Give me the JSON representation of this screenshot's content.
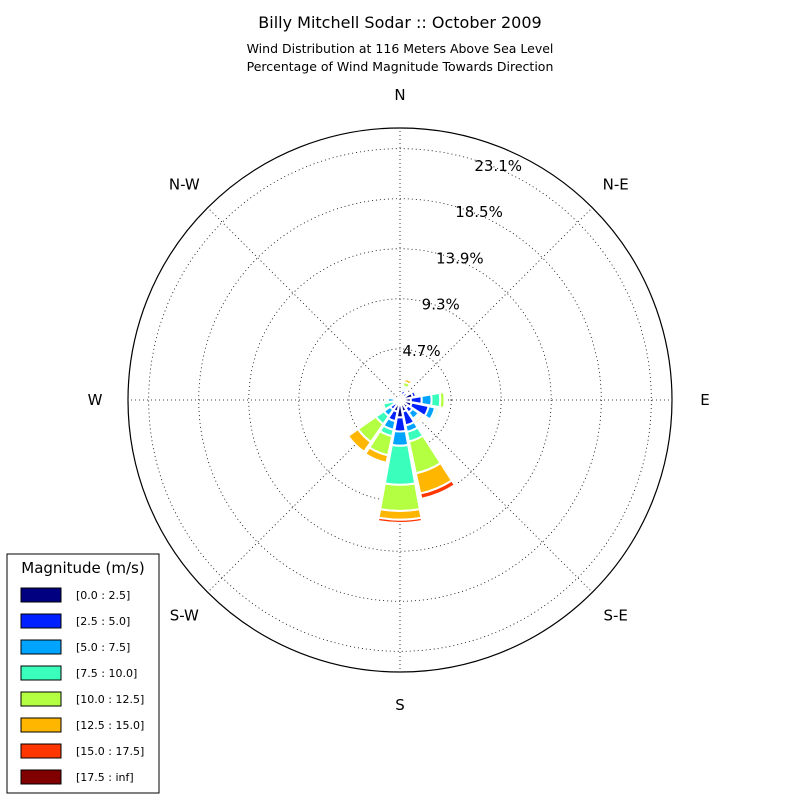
{
  "chart_data": {
    "type": "windrose",
    "title": "Billy Mitchell Sodar :: October 2009",
    "subtitle_lines": [
      "Wind Distribution at 116 Meters Above Sea Level",
      "Percentage of Wind Magnitude Towards Direction"
    ],
    "directions": [
      "N",
      "N-E",
      "E",
      "S-E",
      "S",
      "S-W",
      "W",
      "N-W"
    ],
    "radial_max": 25.0,
    "radial_ticks": [
      {
        "value": 4.7,
        "label": "4.7%"
      },
      {
        "value": 9.3,
        "label": "9.3%"
      },
      {
        "value": 13.9,
        "label": "13.9%"
      },
      {
        "value": 18.5,
        "label": "18.5%"
      },
      {
        "value": 23.1,
        "label": "23.1%"
      }
    ],
    "bins": [
      {
        "label": "[0.0 : 2.5]",
        "color": "#000080"
      },
      {
        "label": "[2.5 : 5.0]",
        "color": "#0020ff"
      },
      {
        "label": "[5.0 : 7.5]",
        "color": "#00a4ff"
      },
      {
        "label": "[7.5 : 10.0]",
        "color": "#3affbc"
      },
      {
        "label": "[10.0 : 12.5]",
        "color": "#b4ff42"
      },
      {
        "label": "[12.5 : 15.0]",
        "color": "#ffb600"
      },
      {
        "label": "[15.0 : 17.5]",
        "color": "#ff3600"
      },
      {
        "label": "[17.5 : inf]",
        "color": "#800000"
      }
    ],
    "sectors": [
      {
        "angle": 0,
        "values": [
          0.3,
          0.0,
          0.0,
          0.0,
          0.0,
          0.0,
          0.0,
          0.0
        ]
      },
      {
        "angle": 22.5,
        "values": [
          0.5,
          0.4,
          0.2,
          0.2,
          0.4,
          0.3,
          0.0,
          0.0
        ]
      },
      {
        "angle": 45,
        "values": [
          0.4,
          0.4,
          0.0,
          0.0,
          0.0,
          0.0,
          0.0,
          0.0
        ]
      },
      {
        "angle": 67.5,
        "values": [
          1.2,
          0.3,
          0.0,
          0.0,
          0.0,
          0.0,
          0.0,
          0.0
        ]
      },
      {
        "angle": 90,
        "values": [
          1.0,
          1.0,
          0.9,
          0.8,
          0.4,
          0.0,
          0.0,
          0.0
        ]
      },
      {
        "angle": 112.5,
        "values": [
          1.1,
          1.6,
          0.6,
          0.2,
          0.2,
          0.0,
          0.0,
          0.0
        ]
      },
      {
        "angle": 135,
        "values": [
          0.9,
          0.5,
          0.7,
          0.1,
          0.2,
          0.2,
          0.0,
          0.0
        ]
      },
      {
        "angle": 157.5,
        "values": [
          1.1,
          1.3,
          0.6,
          0.9,
          3.0,
          1.9,
          0.5,
          0.0
        ]
      },
      {
        "angle": 180,
        "values": [
          1.6,
          1.3,
          1.3,
          3.6,
          2.4,
          0.8,
          0.3,
          0.0
        ]
      },
      {
        "angle": 202.5,
        "values": [
          1.1,
          0.9,
          0.8,
          0.6,
          1.8,
          0.7,
          0.0,
          0.0
        ]
      },
      {
        "angle": 225,
        "values": [
          0.4,
          0.7,
          0.7,
          0.9,
          2.0,
          1.1,
          0.0,
          0.0
        ]
      },
      {
        "angle": 247.5,
        "values": [
          0.2,
          0.2,
          0.2,
          1.0,
          0.2,
          0.0,
          0.0,
          0.0
        ]
      },
      {
        "angle": 270,
        "values": [
          0.2,
          0.3,
          0.6,
          0.2,
          0.0,
          0.0,
          0.0,
          0.0
        ]
      },
      {
        "angle": 292.5,
        "values": [
          0.3,
          0.0,
          0.0,
          0.0,
          0.0,
          0.0,
          0.0,
          0.0
        ]
      },
      {
        "angle": 315,
        "values": [
          0.2,
          0.0,
          0.0,
          0.0,
          0.0,
          0.0,
          0.0,
          0.0
        ]
      },
      {
        "angle": 337.5,
        "values": [
          0.2,
          0.0,
          0.0,
          0.0,
          0.0,
          0.0,
          0.0,
          0.0
        ]
      }
    ],
    "legend": {
      "title": "Magnitude (m/s)",
      "placement": "bottom-left"
    }
  }
}
